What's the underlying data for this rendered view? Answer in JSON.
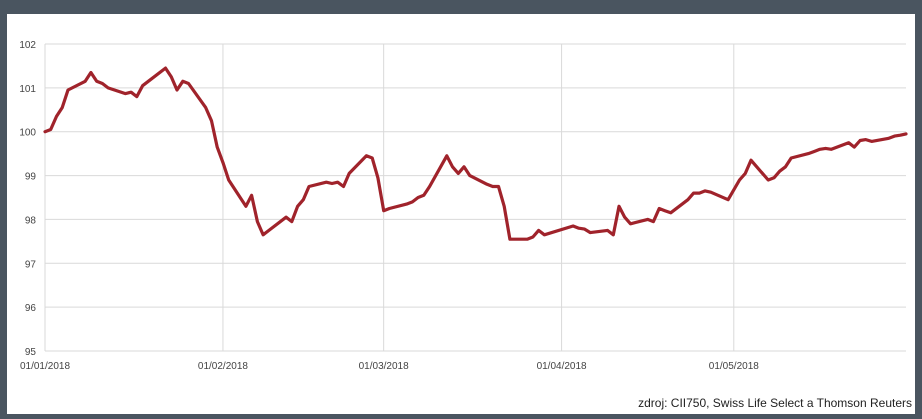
{
  "title": "",
  "source": "zdroj: CII750, Swiss Life Select a Thomson Reuters",
  "colors": {
    "line": "#a0232b",
    "grid": "#d9d9d9",
    "frame": "#4a5560",
    "tick_text": "#444444"
  },
  "chart_data": {
    "type": "line",
    "title": "",
    "xlabel": "",
    "ylabel": "",
    "ylim": [
      95,
      102
    ],
    "yticks": [
      95,
      96,
      97,
      98,
      99,
      100,
      101,
      102
    ],
    "ytick_labels": [
      "95",
      "96",
      "97",
      "98",
      "99",
      "100",
      "101",
      "102"
    ],
    "xlim": [
      "2018-01-01",
      "2018-05-31"
    ],
    "xticks": [
      "2018-01-01",
      "2018-02-01",
      "2018-03-01",
      "2018-04-01",
      "2018-05-01"
    ],
    "xtick_labels": [
      "01/01/2018",
      "01/02/2018",
      "01/03/2018",
      "01/04/2018",
      "01/05/2018"
    ],
    "grid": true,
    "legend": "none",
    "series": [
      {
        "color": "#a0232b",
        "x": [
          "2018-01-01",
          "2018-01-02",
          "2018-01-03",
          "2018-01-04",
          "2018-01-05",
          "2018-01-08",
          "2018-01-09",
          "2018-01-10",
          "2018-01-11",
          "2018-01-12",
          "2018-01-15",
          "2018-01-16",
          "2018-01-17",
          "2018-01-18",
          "2018-01-19",
          "2018-01-22",
          "2018-01-23",
          "2018-01-24",
          "2018-01-25",
          "2018-01-26",
          "2018-01-29",
          "2018-01-30",
          "2018-01-31",
          "2018-02-01",
          "2018-02-02",
          "2018-02-05",
          "2018-02-06",
          "2018-02-07",
          "2018-02-08",
          "2018-02-09",
          "2018-02-12",
          "2018-02-13",
          "2018-02-14",
          "2018-02-15",
          "2018-02-16",
          "2018-02-19",
          "2018-02-20",
          "2018-02-21",
          "2018-02-22",
          "2018-02-23",
          "2018-02-26",
          "2018-02-27",
          "2018-02-28",
          "2018-03-01",
          "2018-03-02",
          "2018-03-05",
          "2018-03-06",
          "2018-03-07",
          "2018-03-08",
          "2018-03-09",
          "2018-03-12",
          "2018-03-13",
          "2018-03-14",
          "2018-03-15",
          "2018-03-16",
          "2018-03-19",
          "2018-03-20",
          "2018-03-21",
          "2018-03-22",
          "2018-03-23",
          "2018-03-26",
          "2018-03-27",
          "2018-03-28",
          "2018-03-29",
          "2018-04-03",
          "2018-04-04",
          "2018-04-05",
          "2018-04-06",
          "2018-04-09",
          "2018-04-10",
          "2018-04-11",
          "2018-04-12",
          "2018-04-13",
          "2018-04-16",
          "2018-04-17",
          "2018-04-18",
          "2018-04-19",
          "2018-04-20",
          "2018-04-23",
          "2018-04-24",
          "2018-04-25",
          "2018-04-26",
          "2018-04-27",
          "2018-04-30",
          "2018-05-02",
          "2018-05-03",
          "2018-05-04",
          "2018-05-07",
          "2018-05-08",
          "2018-05-09",
          "2018-05-10",
          "2018-05-11",
          "2018-05-14",
          "2018-05-15",
          "2018-05-16",
          "2018-05-17",
          "2018-05-18",
          "2018-05-21",
          "2018-05-22",
          "2018-05-23",
          "2018-05-24",
          "2018-05-25",
          "2018-05-28",
          "2018-05-29",
          "2018-05-30",
          "2018-05-31"
        ],
        "y": [
          100.0,
          100.05,
          100.35,
          100.55,
          100.95,
          101.15,
          101.35,
          101.15,
          101.1,
          101.0,
          100.87,
          100.9,
          100.8,
          101.05,
          101.15,
          101.45,
          101.25,
          100.95,
          101.15,
          101.1,
          100.55,
          100.25,
          99.65,
          99.3,
          98.9,
          98.3,
          98.55,
          97.95,
          97.65,
          97.75,
          98.05,
          97.95,
          98.3,
          98.45,
          98.75,
          98.85,
          98.82,
          98.85,
          98.75,
          99.05,
          99.45,
          99.4,
          98.95,
          98.2,
          98.25,
          98.35,
          98.4,
          98.5,
          98.55,
          98.75,
          99.45,
          99.2,
          99.05,
          99.2,
          99.0,
          98.8,
          98.75,
          98.75,
          98.3,
          97.55,
          97.55,
          97.6,
          97.75,
          97.65,
          97.85,
          97.8,
          97.78,
          97.7,
          97.75,
          97.65,
          98.3,
          98.05,
          97.9,
          98.0,
          97.95,
          98.25,
          98.2,
          98.15,
          98.45,
          98.6,
          98.6,
          98.65,
          98.62,
          98.45,
          98.9,
          99.05,
          99.35,
          98.9,
          98.95,
          99.1,
          99.2,
          99.4,
          99.5,
          99.55,
          99.6,
          99.62,
          99.6,
          99.75,
          99.65,
          99.8,
          99.82,
          99.78,
          99.85,
          99.9,
          99.92,
          99.95
        ]
      }
    ]
  }
}
